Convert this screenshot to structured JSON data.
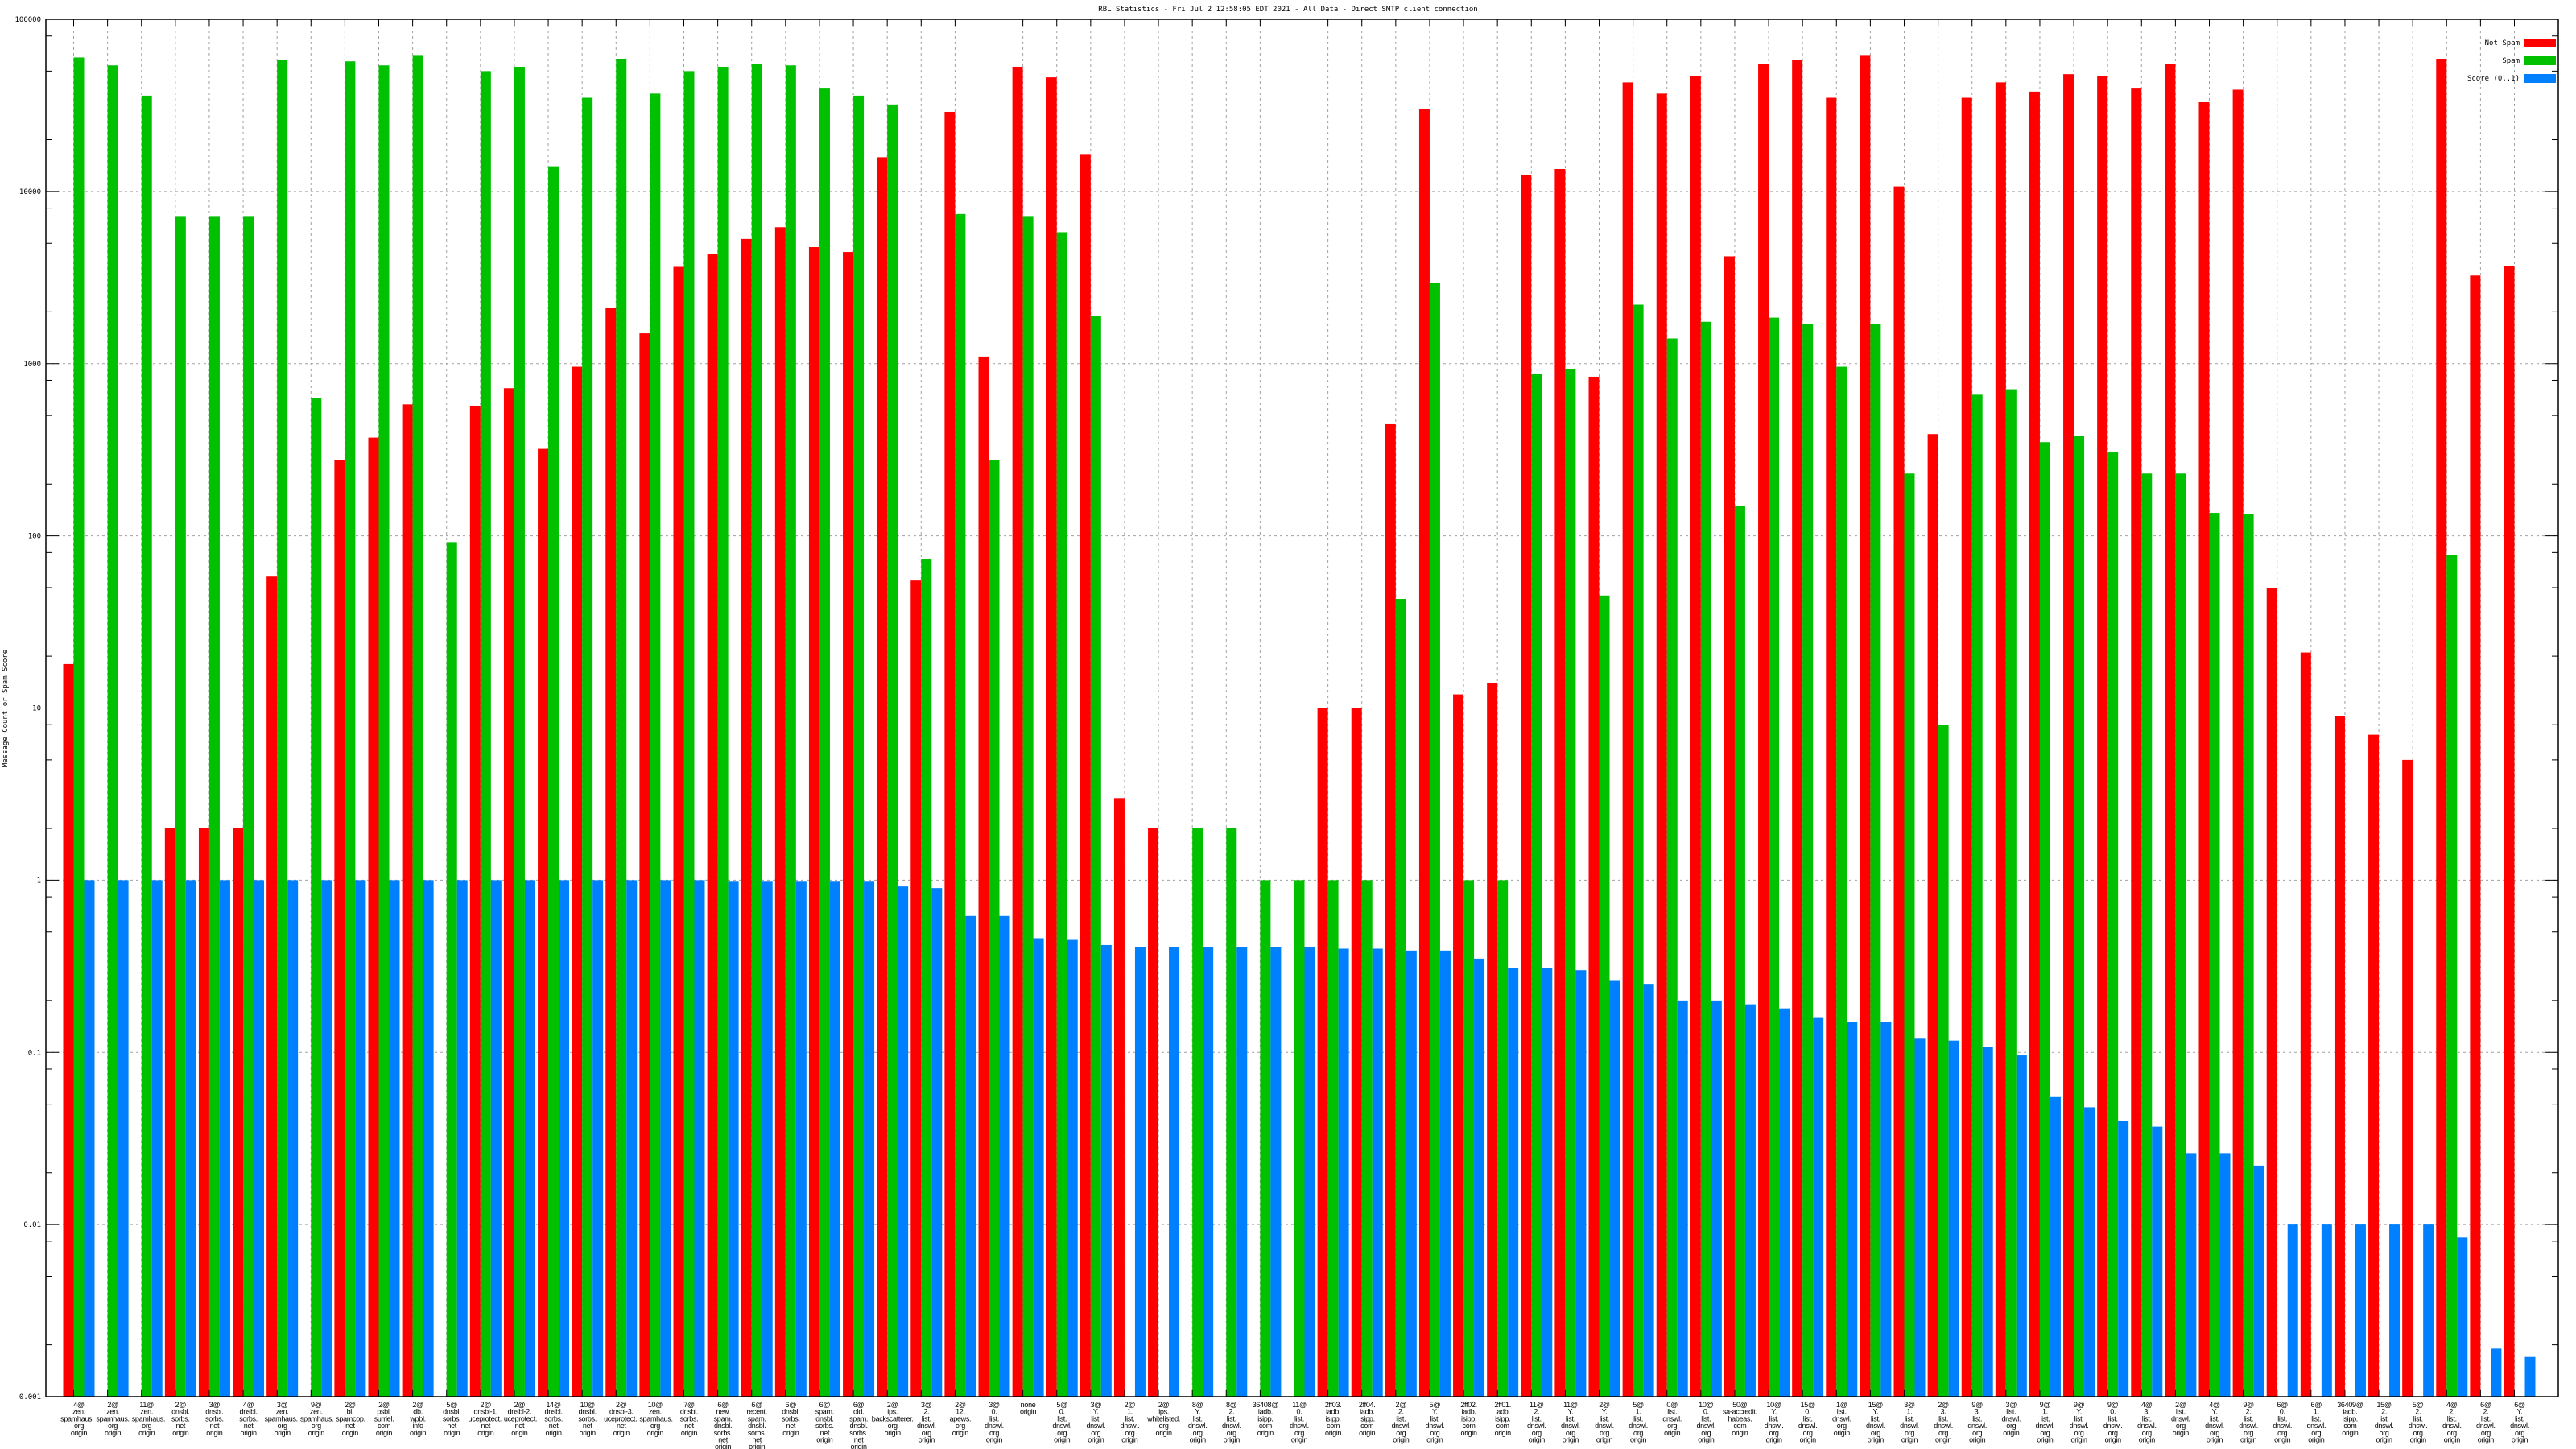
{
  "chart_data": {
    "type": "bar",
    "title": "RBL Statistics - Fri Jul  2 12:58:05 EDT 2021 - All Data - Direct SMTP client connection",
    "xlabel": "",
    "ylabel": "Message Count or Spam Score",
    "yscale": "log",
    "ylim": [
      0.001,
      100000
    ],
    "yticks": [
      "100000",
      "10000",
      "1000",
      "100",
      "10",
      "1",
      "0.1",
      "0.01",
      "0.001"
    ],
    "grid": true,
    "legend_position": "top-right",
    "categories": [
      [
        "4@",
        "zen.",
        "spamhaus.",
        "org",
        "origin"
      ],
      [
        "2@",
        "zen.",
        "spamhaus.",
        "org",
        "origin"
      ],
      [
        "11@",
        "zen.",
        "spamhaus.",
        "org",
        "origin"
      ],
      [
        "2@",
        "dnsbl.",
        "sorbs.",
        "net",
        "origin"
      ],
      [
        "3@",
        "dnsbl.",
        "sorbs.",
        "net",
        "origin"
      ],
      [
        "4@",
        "dnsbl.",
        "sorbs.",
        "net",
        "origin"
      ],
      [
        "3@",
        "zen.",
        "spamhaus.",
        "org",
        "origin"
      ],
      [
        "9@",
        "zen.",
        "spamhaus.",
        "org",
        "origin"
      ],
      [
        "2@",
        "bl.",
        "spamcop.",
        "net",
        "origin"
      ],
      [
        "2@",
        "psbl.",
        "surriel.",
        "com",
        "origin"
      ],
      [
        "2@",
        "db.",
        "wpbl.",
        "info",
        "origin"
      ],
      [
        "5@",
        "dnsbl.",
        "sorbs.",
        "net",
        "origin"
      ],
      [
        "2@",
        "dnsbl-1.",
        "uceprotect.",
        "net",
        "origin"
      ],
      [
        "2@",
        "dnsbl-2.",
        "uceprotect.",
        "net",
        "origin"
      ],
      [
        "14@",
        "dnsbl.",
        "sorbs.",
        "net",
        "origin"
      ],
      [
        "10@",
        "dnsbl.",
        "sorbs.",
        "net",
        "origin"
      ],
      [
        "2@",
        "dnsbl-3.",
        "uceprotect.",
        "net",
        "origin"
      ],
      [
        "10@",
        "zen.",
        "spamhaus.",
        "org",
        "origin"
      ],
      [
        "7@",
        "dnsbl.",
        "sorbs.",
        "net",
        "origin"
      ],
      [
        "6@",
        "new.",
        "spam.",
        "dnsbl.",
        "sorbs.",
        "net",
        "origin"
      ],
      [
        "6@",
        "recent.",
        "spam.",
        "dnsbl.",
        "sorbs.",
        "net",
        "origin"
      ],
      [
        "6@",
        "dnsbl.",
        "sorbs.",
        "net",
        "origin"
      ],
      [
        "6@",
        "spam.",
        "dnsbl.",
        "sorbs.",
        "net",
        "origin"
      ],
      [
        "6@",
        "old.",
        "spam.",
        "dnsbl.",
        "sorbs.",
        "net",
        "origin"
      ],
      [
        "2@",
        "ips.",
        "backscatterer.",
        "org",
        "origin"
      ],
      [
        "3@",
        "2.",
        "list.",
        "dnswl.",
        "org",
        "origin"
      ],
      [
        "2@",
        "12.",
        "apews.",
        "org",
        "origin"
      ],
      [
        "3@",
        "0.",
        "list.",
        "dnswl.",
        "org",
        "origin"
      ],
      [
        "none",
        "origin"
      ],
      [
        "5@",
        "0.",
        "list.",
        "dnswl.",
        "org",
        "origin"
      ],
      [
        "3@",
        "Y.",
        "list.",
        "dnswl.",
        "org",
        "origin"
      ],
      [
        "2@",
        "1.",
        "list.",
        "dnswl.",
        "org",
        "origin"
      ],
      [
        "2@",
        "ips.",
        "whitelisted.",
        "org",
        "origin"
      ],
      [
        "8@",
        "Y.",
        "list.",
        "dnswl.",
        "org",
        "origin"
      ],
      [
        "8@",
        "2.",
        "list.",
        "dnswl.",
        "org",
        "origin"
      ],
      [
        "36408@",
        "iadb.",
        "isipp.",
        "com",
        "origin"
      ],
      [
        "11@",
        "0.",
        "list.",
        "dnswl.",
        "org",
        "origin"
      ],
      [
        "2ff03.",
        "iadb.",
        "isipp.",
        "com",
        "origin"
      ],
      [
        "2ff04.",
        "iadb.",
        "isipp.",
        "com",
        "origin"
      ],
      [
        "2@",
        "2.",
        "list.",
        "dnswl.",
        "org",
        "origin"
      ],
      [
        "5@",
        "Y.",
        "list.",
        "dnswl.",
        "org",
        "origin"
      ],
      [
        "2ff02.",
        "iadb.",
        "isipp.",
        "com",
        "origin"
      ],
      [
        "2ff01.",
        "iadb.",
        "isipp.",
        "com",
        "origin"
      ],
      [
        "11@",
        "2.",
        "list.",
        "dnswl.",
        "org",
        "origin"
      ],
      [
        "11@",
        "Y.",
        "list.",
        "dnswl.",
        "org",
        "origin"
      ],
      [
        "2@",
        "Y.",
        "list.",
        "dnswl.",
        "org",
        "origin"
      ],
      [
        "5@",
        "1.",
        "list.",
        "dnswl.",
        "org",
        "origin"
      ],
      [
        "0@",
        "list.",
        "dnswl.",
        "org",
        "origin"
      ],
      [
        "10@",
        "0.",
        "list.",
        "dnswl.",
        "org",
        "origin"
      ],
      [
        "50@",
        "sa-accredit.",
        "habeas.",
        "com",
        "origin"
      ],
      [
        "10@",
        "Y.",
        "list.",
        "dnswl.",
        "org",
        "origin"
      ],
      [
        "15@",
        "0.",
        "list.",
        "dnswl.",
        "org",
        "origin"
      ],
      [
        "1@",
        "list.",
        "dnswl.",
        "org",
        "origin"
      ],
      [
        "15@",
        "Y.",
        "list.",
        "dnswl.",
        "org",
        "origin"
      ],
      [
        "3@",
        "1.",
        "list.",
        "dnswl.",
        "org",
        "origin"
      ],
      [
        "2@",
        "3.",
        "list.",
        "dnswl.",
        "org",
        "origin"
      ],
      [
        "9@",
        "3.",
        "list.",
        "dnswl.",
        "org",
        "origin"
      ],
      [
        "3@",
        "list.",
        "dnswl.",
        "org",
        "origin"
      ],
      [
        "9@",
        "1.",
        "list.",
        "dnswl.",
        "org",
        "origin"
      ],
      [
        "9@",
        "Y.",
        "list.",
        "dnswl.",
        "org",
        "origin"
      ],
      [
        "9@",
        "0.",
        "list.",
        "dnswl.",
        "org",
        "origin"
      ],
      [
        "4@",
        "3.",
        "list.",
        "dnswl.",
        "org",
        "origin"
      ],
      [
        "2@",
        "list.",
        "dnswl.",
        "org",
        "origin"
      ],
      [
        "4@",
        "Y.",
        "list.",
        "dnswl.",
        "org",
        "origin"
      ],
      [
        "9@",
        "2.",
        "list.",
        "dnswl.",
        "org",
        "origin"
      ],
      [
        "6@",
        "0.",
        "list.",
        "dnswl.",
        "org",
        "origin"
      ],
      [
        "6@",
        "1.",
        "list.",
        "dnswl.",
        "org",
        "origin"
      ],
      [
        "36409@",
        "iadb.",
        "isipp.",
        "com",
        "origin"
      ],
      [
        "15@",
        "2.",
        "list.",
        "dnswl.",
        "org",
        "origin"
      ],
      [
        "5@",
        "2.",
        "list.",
        "dnswl.",
        "org",
        "origin"
      ],
      [
        "4@",
        "2.",
        "list.",
        "dnswl.",
        "org",
        "origin"
      ],
      [
        "6@",
        "2.",
        "list.",
        "dnswl.",
        "org",
        "origin"
      ],
      [
        "6@",
        "Y.",
        "list.",
        "dnswl.",
        "org",
        "origin"
      ]
    ],
    "series": [
      {
        "name": "Not Spam",
        "color": "#ff0000",
        "values": [
          18,
          null,
          null,
          2,
          2,
          2,
          58,
          null,
          275,
          372,
          580,
          null,
          570,
          720,
          320,
          960,
          2100,
          1500,
          3650,
          4350,
          5300,
          6200,
          4750,
          4450,
          15800,
          55,
          29000,
          1100,
          53000,
          46000,
          16500,
          3,
          2,
          null,
          null,
          null,
          null,
          10,
          10,
          445,
          30000,
          12,
          14,
          12500,
          13500,
          840,
          43000,
          37000,
          47000,
          4200,
          55000,
          58000,
          35000,
          62000,
          10700,
          390,
          35000,
          43000,
          38000,
          48000,
          47000,
          40000,
          55000,
          33000,
          39000,
          50,
          21,
          9,
          7,
          5,
          59000,
          3250,
          3700
        ]
      },
      {
        "name": "Spam",
        "color": "#00c000",
        "values": [
          60000,
          54000,
          36000,
          7200,
          7200,
          7200,
          58000,
          630,
          57000,
          54000,
          62000,
          92,
          50000,
          53000,
          14000,
          35000,
          59000,
          37000,
          50000,
          53000,
          55000,
          54000,
          40000,
          36000,
          32000,
          73,
          7400,
          275,
          7200,
          5800,
          1900,
          null,
          null,
          2,
          2,
          1,
          1,
          1,
          1,
          43,
          2950,
          1,
          1,
          870,
          930,
          45,
          2200,
          1400,
          1750,
          150,
          1850,
          1700,
          960,
          1700,
          230,
          8,
          660,
          710,
          350,
          380,
          305,
          230,
          230,
          136,
          134,
          null,
          null,
          null,
          null,
          null,
          77,
          null,
          null
        ]
      },
      {
        "name": "Score (0..1)",
        "color": "#0080ff",
        "values": [
          1,
          1,
          1,
          1,
          1,
          1,
          1,
          1,
          1,
          1,
          1,
          1,
          1,
          1,
          1,
          1,
          1,
          1,
          1,
          0.98,
          0.98,
          0.98,
          0.98,
          0.98,
          0.92,
          0.9,
          0.62,
          0.62,
          0.46,
          0.45,
          0.42,
          0.41,
          0.41,
          0.41,
          0.41,
          0.41,
          0.41,
          0.4,
          0.4,
          0.39,
          0.39,
          0.35,
          0.31,
          0.31,
          0.3,
          0.26,
          0.25,
          0.2,
          0.2,
          0.19,
          0.18,
          0.16,
          0.15,
          0.15,
          0.12,
          0.117,
          0.107,
          0.096,
          0.055,
          0.048,
          0.04,
          0.037,
          0.026,
          0.026,
          0.022,
          0.01,
          0.01,
          0.01,
          0.01,
          0.01,
          0.0084,
          0.0019,
          0.0017
        ]
      }
    ]
  }
}
